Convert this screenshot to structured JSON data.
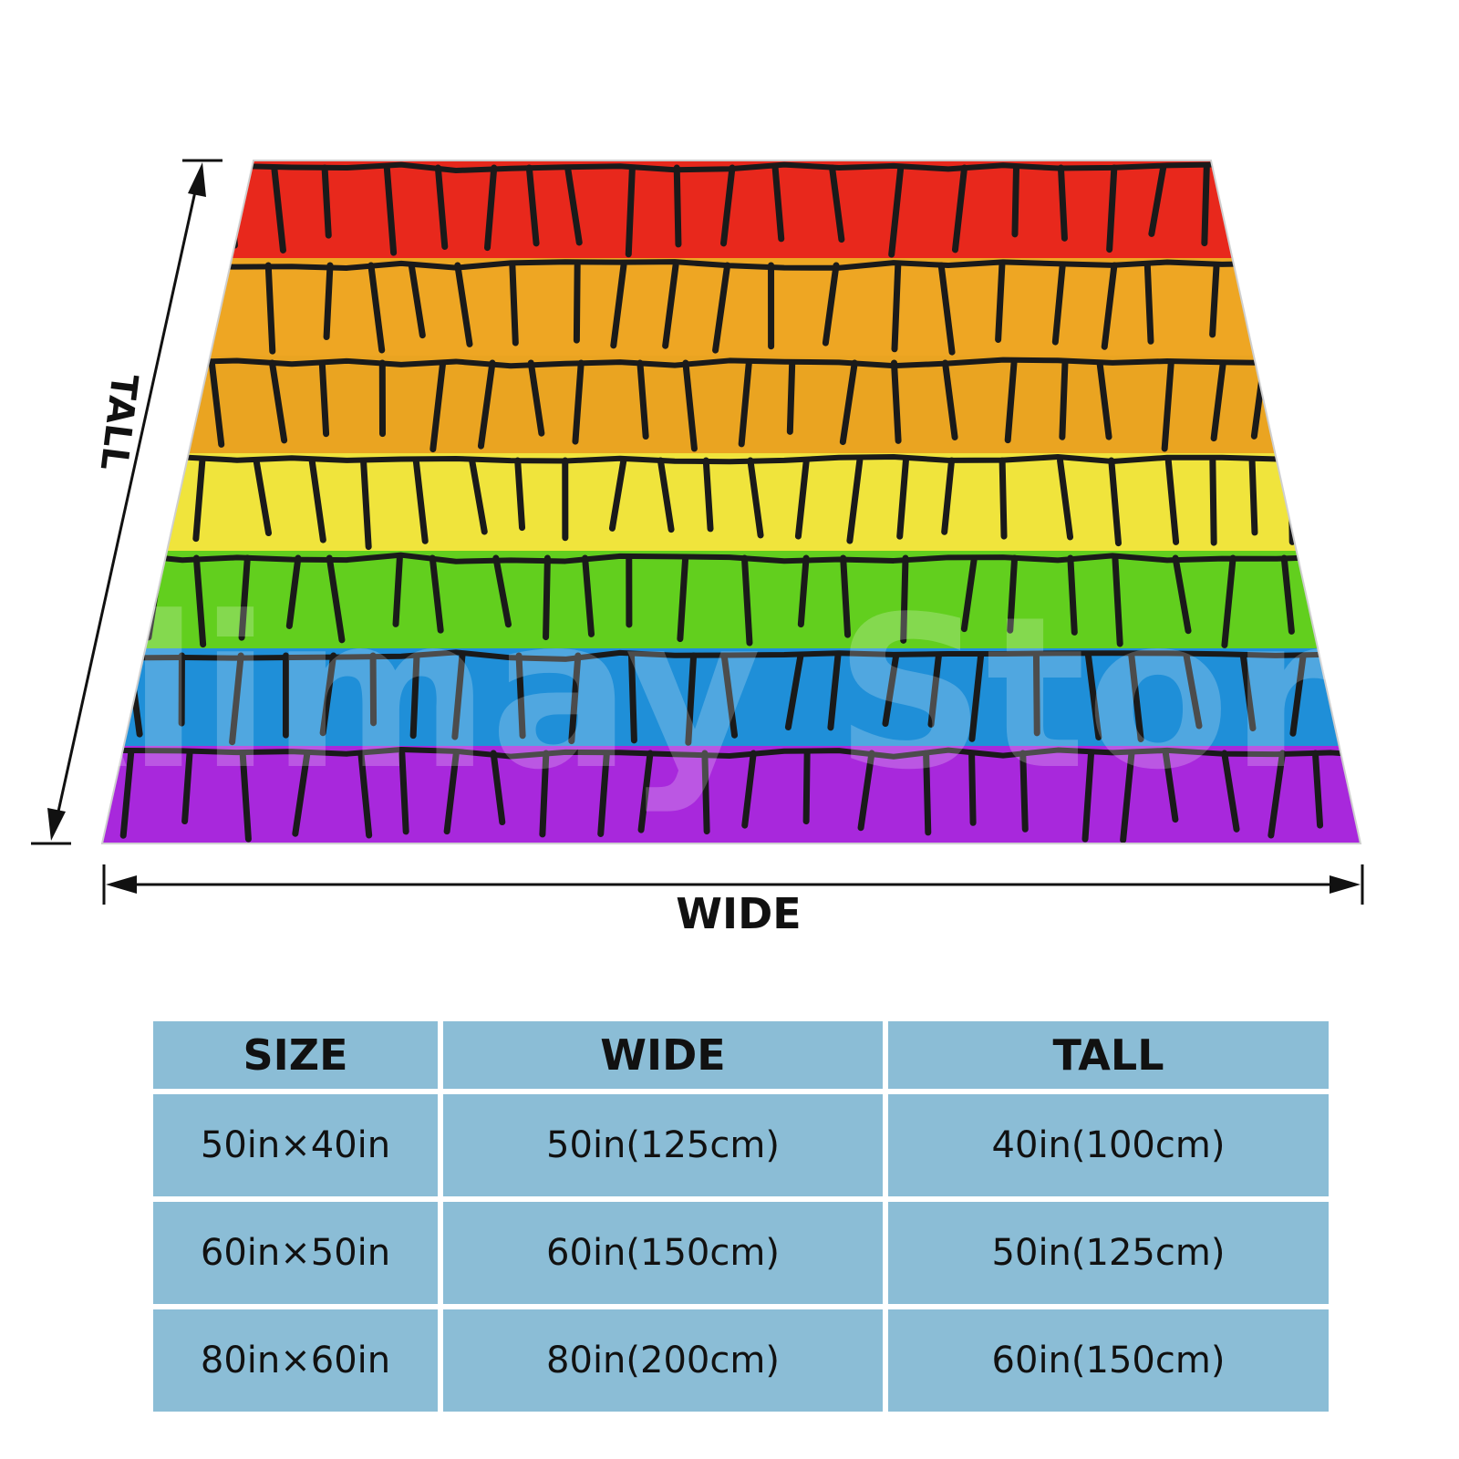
{
  "diagram": {
    "tall_label": "TALL",
    "wide_label": "WIDE",
    "watermark": "Alimay Store",
    "stripe_colors": [
      "#e8281c",
      "#eea623",
      "#eaa421",
      "#f0e43c",
      "#62cf1e",
      "#1f8fd8",
      "#a828dc"
    ],
    "outline_color": "#1a1a1a"
  },
  "size_table": {
    "headers": [
      "SIZE",
      "WIDE",
      "TALL"
    ],
    "rows": [
      [
        "50in×40in",
        "50in(125cm)",
        "40in(100cm)"
      ],
      [
        "60in×50in",
        "60in(150cm)",
        "50in(125cm)"
      ],
      [
        "80in×60in",
        "80in(200cm)",
        "60in(150cm)"
      ]
    ],
    "cell_color": "#8bbdd6"
  }
}
